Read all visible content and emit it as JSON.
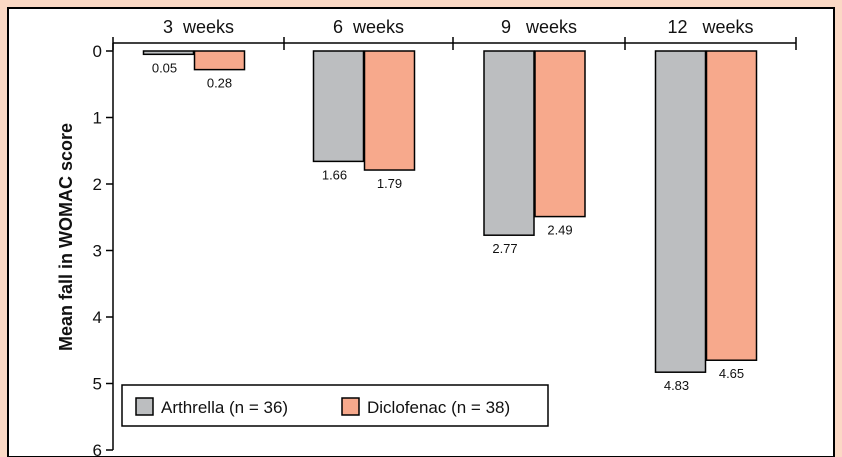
{
  "chart_data": {
    "type": "bar",
    "categories": [
      "3  weeks",
      "6  weeks",
      "9   weeks",
      "12   weeks"
    ],
    "series": [
      {
        "name": "Arthrella (n = 36)",
        "values": [
          0.05,
          1.66,
          2.77,
          4.83
        ],
        "labels": [
          "0.05",
          "1.66",
          "2.77",
          "4.83"
        ],
        "color": "#bcbec0"
      },
      {
        "name": "Diclofenac (n = 38)",
        "values": [
          0.28,
          1.79,
          2.49,
          4.65
        ],
        "labels": [
          "0.28",
          "1.79",
          "2.49",
          "4.65"
        ],
        "color": "#f7a98c"
      }
    ],
    "ylabel": "Mean fall in WOMAC score",
    "ylim": [
      0,
      6
    ],
    "yticks": [
      0,
      1,
      2,
      3,
      4,
      5,
      6
    ],
    "y_inverted": true,
    "x_axis_position": "top",
    "legend_position": "bottom-left",
    "grid": false,
    "colors": {
      "background": "#fbd9c5",
      "plot_background": "#ffffff"
    }
  }
}
